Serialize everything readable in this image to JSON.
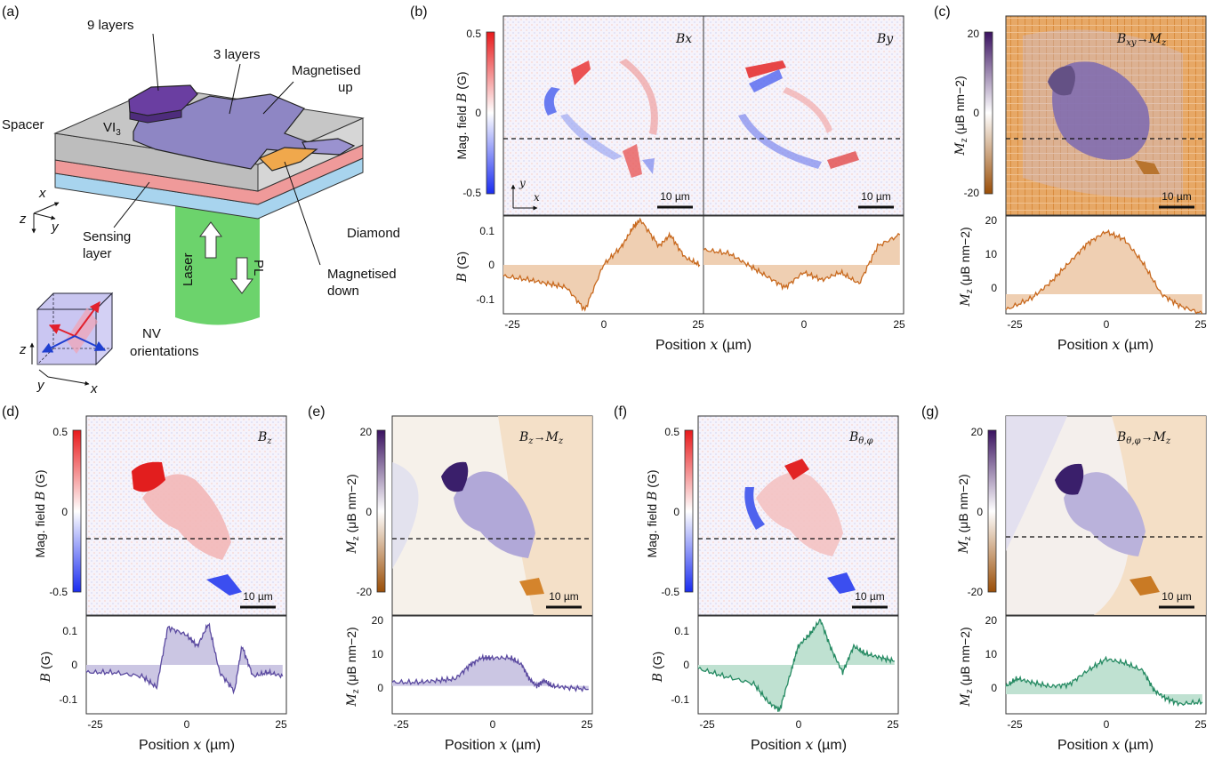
{
  "figure": {
    "panel_letters": [
      "(a)",
      "(b)",
      "(c)",
      "(d)",
      "(e)",
      "(f)",
      "(g)"
    ],
    "schematic": {
      "layers9": "9 layers",
      "layers3": "3 layers",
      "mag_up_1": "Magnetised",
      "mag_up_2": "up",
      "mag_down_1": "Magnetised",
      "mag_down_2": "down",
      "spacer": "Spacer",
      "vi3": "VI",
      "vi3_sub": "3",
      "sensing_1": "Sensing",
      "sensing_2": "layer",
      "diamond": "Diamond",
      "laser": "Laser",
      "pl": "PL",
      "nv_1": "NV",
      "nv_2": "orientations",
      "axis_x": "x",
      "axis_y": "y",
      "axis_z": "z"
    },
    "common": {
      "scalebar": "10 µm",
      "xlabel": "Position",
      "xvar": "x",
      "xunit": "(µm)",
      "xunit_it": "µ",
      "xticks": [
        "-25",
        "0",
        "25"
      ]
    },
    "maps": {
      "b_x": "Bx",
      "b_y": "By",
      "c": "Bxy→Mz",
      "d": "Bz",
      "e": "Bz→Mz",
      "f": "Bθ,φ",
      "g": "Bθ,φ→Mz"
    },
    "colorbars": {
      "field_label": "Mag. field",
      "field_unit": "(G)",
      "field_ticks": [
        "0.5",
        "0",
        "-0.5"
      ],
      "mag_ticks": [
        "20",
        "0",
        "-20"
      ],
      "mag_unit": "(μB nm−2)"
    },
    "profiles": {
      "b_ylabel": "B (G)",
      "b_yticks": [
        "0.1",
        "0",
        "-0.1"
      ],
      "m_ylabel": "Mz (μB nm−2)",
      "c_yticks": [
        "20",
        "10",
        "0"
      ],
      "eg_yticks": [
        "20",
        "10",
        "0"
      ]
    },
    "colors": {
      "orange": "#c8691e",
      "orange_fill": "#efcfb2",
      "purple": "#5b4aa0",
      "purple_fill": "#cbc6e3",
      "green": "#258a62",
      "green_fill": "#bfe1d1",
      "spacer": "#c8c8c8",
      "sensing": "#ef9a9a",
      "diamond": "#a8d4ee",
      "laser": "#6cd36c",
      "flake3": "#8e86c4",
      "flake9": "#6a3ea1",
      "flakedown": "#f0a84c"
    }
  },
  "chart_data": [
    {
      "panel": "b-left",
      "type": "line",
      "x": [
        -27,
        -20,
        -15,
        -10,
        -5,
        0,
        5,
        8,
        10,
        15,
        18,
        22,
        26
      ],
      "values": [
        -0.03,
        -0.04,
        -0.05,
        -0.06,
        -0.12,
        0.0,
        0.05,
        0.1,
        0.12,
        0.05,
        0.08,
        0.02,
        0.0
      ],
      "ylim": [
        -0.13,
        0.13
      ],
      "xlim": [
        -27,
        27
      ]
    },
    {
      "panel": "b-right",
      "type": "line",
      "x": [
        -27,
        -20,
        -15,
        -10,
        -5,
        0,
        5,
        10,
        15,
        20,
        26
      ],
      "values": [
        0.04,
        0.03,
        0.0,
        -0.03,
        -0.06,
        -0.02,
        -0.04,
        -0.02,
        -0.05,
        0.05,
        0.08
      ],
      "ylim": [
        -0.13,
        0.13
      ],
      "xlim": [
        -27,
        27
      ]
    },
    {
      "panel": "c",
      "type": "line",
      "x": [
        -27,
        -20,
        -15,
        -10,
        -5,
        0,
        5,
        10,
        15,
        20,
        26
      ],
      "values": [
        -4,
        -1,
        3,
        8,
        13,
        16,
        14,
        8,
        0,
        -3,
        -5
      ],
      "ylim": [
        -5,
        20
      ],
      "xlim": [
        -27,
        27
      ]
    },
    {
      "panel": "d",
      "type": "line",
      "x": [
        -27,
        -20,
        -12,
        -8,
        -5,
        0,
        3,
        6,
        9,
        13,
        15,
        18,
        22,
        26
      ],
      "values": [
        -0.02,
        -0.02,
        -0.03,
        -0.06,
        0.1,
        0.08,
        0.05,
        0.11,
        -0.02,
        -0.07,
        0.05,
        -0.03,
        -0.02,
        -0.03
      ],
      "ylim": [
        -0.13,
        0.13
      ],
      "xlim": [
        -27,
        27
      ]
    },
    {
      "panel": "e",
      "type": "line",
      "x": [
        -27,
        -20,
        -15,
        -10,
        -6,
        -3,
        0,
        5,
        8,
        10,
        12,
        14,
        16,
        20,
        26
      ],
      "values": [
        1,
        1,
        1.5,
        2,
        6,
        8,
        8,
        8,
        6,
        2,
        0,
        1.5,
        0,
        -0.5,
        -1
      ],
      "ylim": [
        -8,
        20
      ],
      "xlim": [
        -27,
        27
      ]
    },
    {
      "panel": "f",
      "type": "line",
      "x": [
        -27,
        -20,
        -12,
        -8,
        -5,
        -2,
        0,
        3,
        6,
        9,
        12,
        15,
        18,
        22,
        26
      ],
      "values": [
        -0.01,
        -0.03,
        -0.05,
        -0.1,
        -0.12,
        -0.02,
        0.05,
        0.08,
        0.12,
        0.04,
        -0.02,
        0.05,
        0.03,
        0.02,
        0.01
      ],
      "ylim": [
        -0.13,
        0.13
      ],
      "xlim": [
        -27,
        27
      ]
    },
    {
      "panel": "g",
      "type": "line",
      "x": [
        -27,
        -24,
        -20,
        -15,
        -10,
        -5,
        0,
        5,
        10,
        13,
        16,
        20,
        26
      ],
      "values": [
        2,
        4,
        3,
        2,
        2.5,
        6,
        9,
        8,
        6,
        1,
        -1,
        -2.5,
        -2
      ],
      "ylim": [
        -5,
        20
      ],
      "xlim": [
        -27,
        27
      ]
    }
  ]
}
